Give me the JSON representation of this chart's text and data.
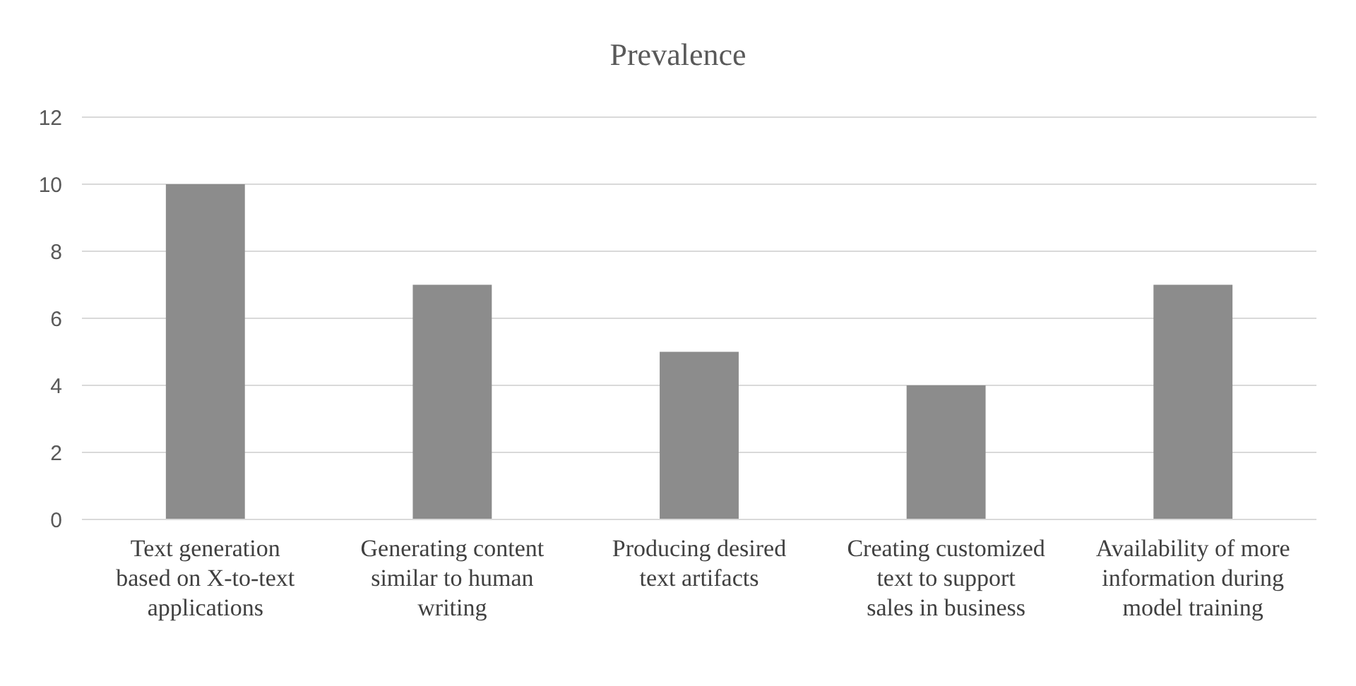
{
  "chart_data": {
    "type": "bar",
    "title": "Prevalence",
    "categories": [
      "Text generation based on X-to-text applications",
      "Generating content similar to human writing",
      "Producing desired text artifacts",
      "Creating customized text to support sales in business",
      "Availability of more information during model training"
    ],
    "values": [
      10,
      7,
      5,
      4,
      7
    ],
    "color": "#8c8c8c",
    "ylim": [
      0,
      12
    ],
    "yticks": [
      0,
      2,
      4,
      6,
      8,
      10,
      12
    ],
    "grid": "y"
  }
}
